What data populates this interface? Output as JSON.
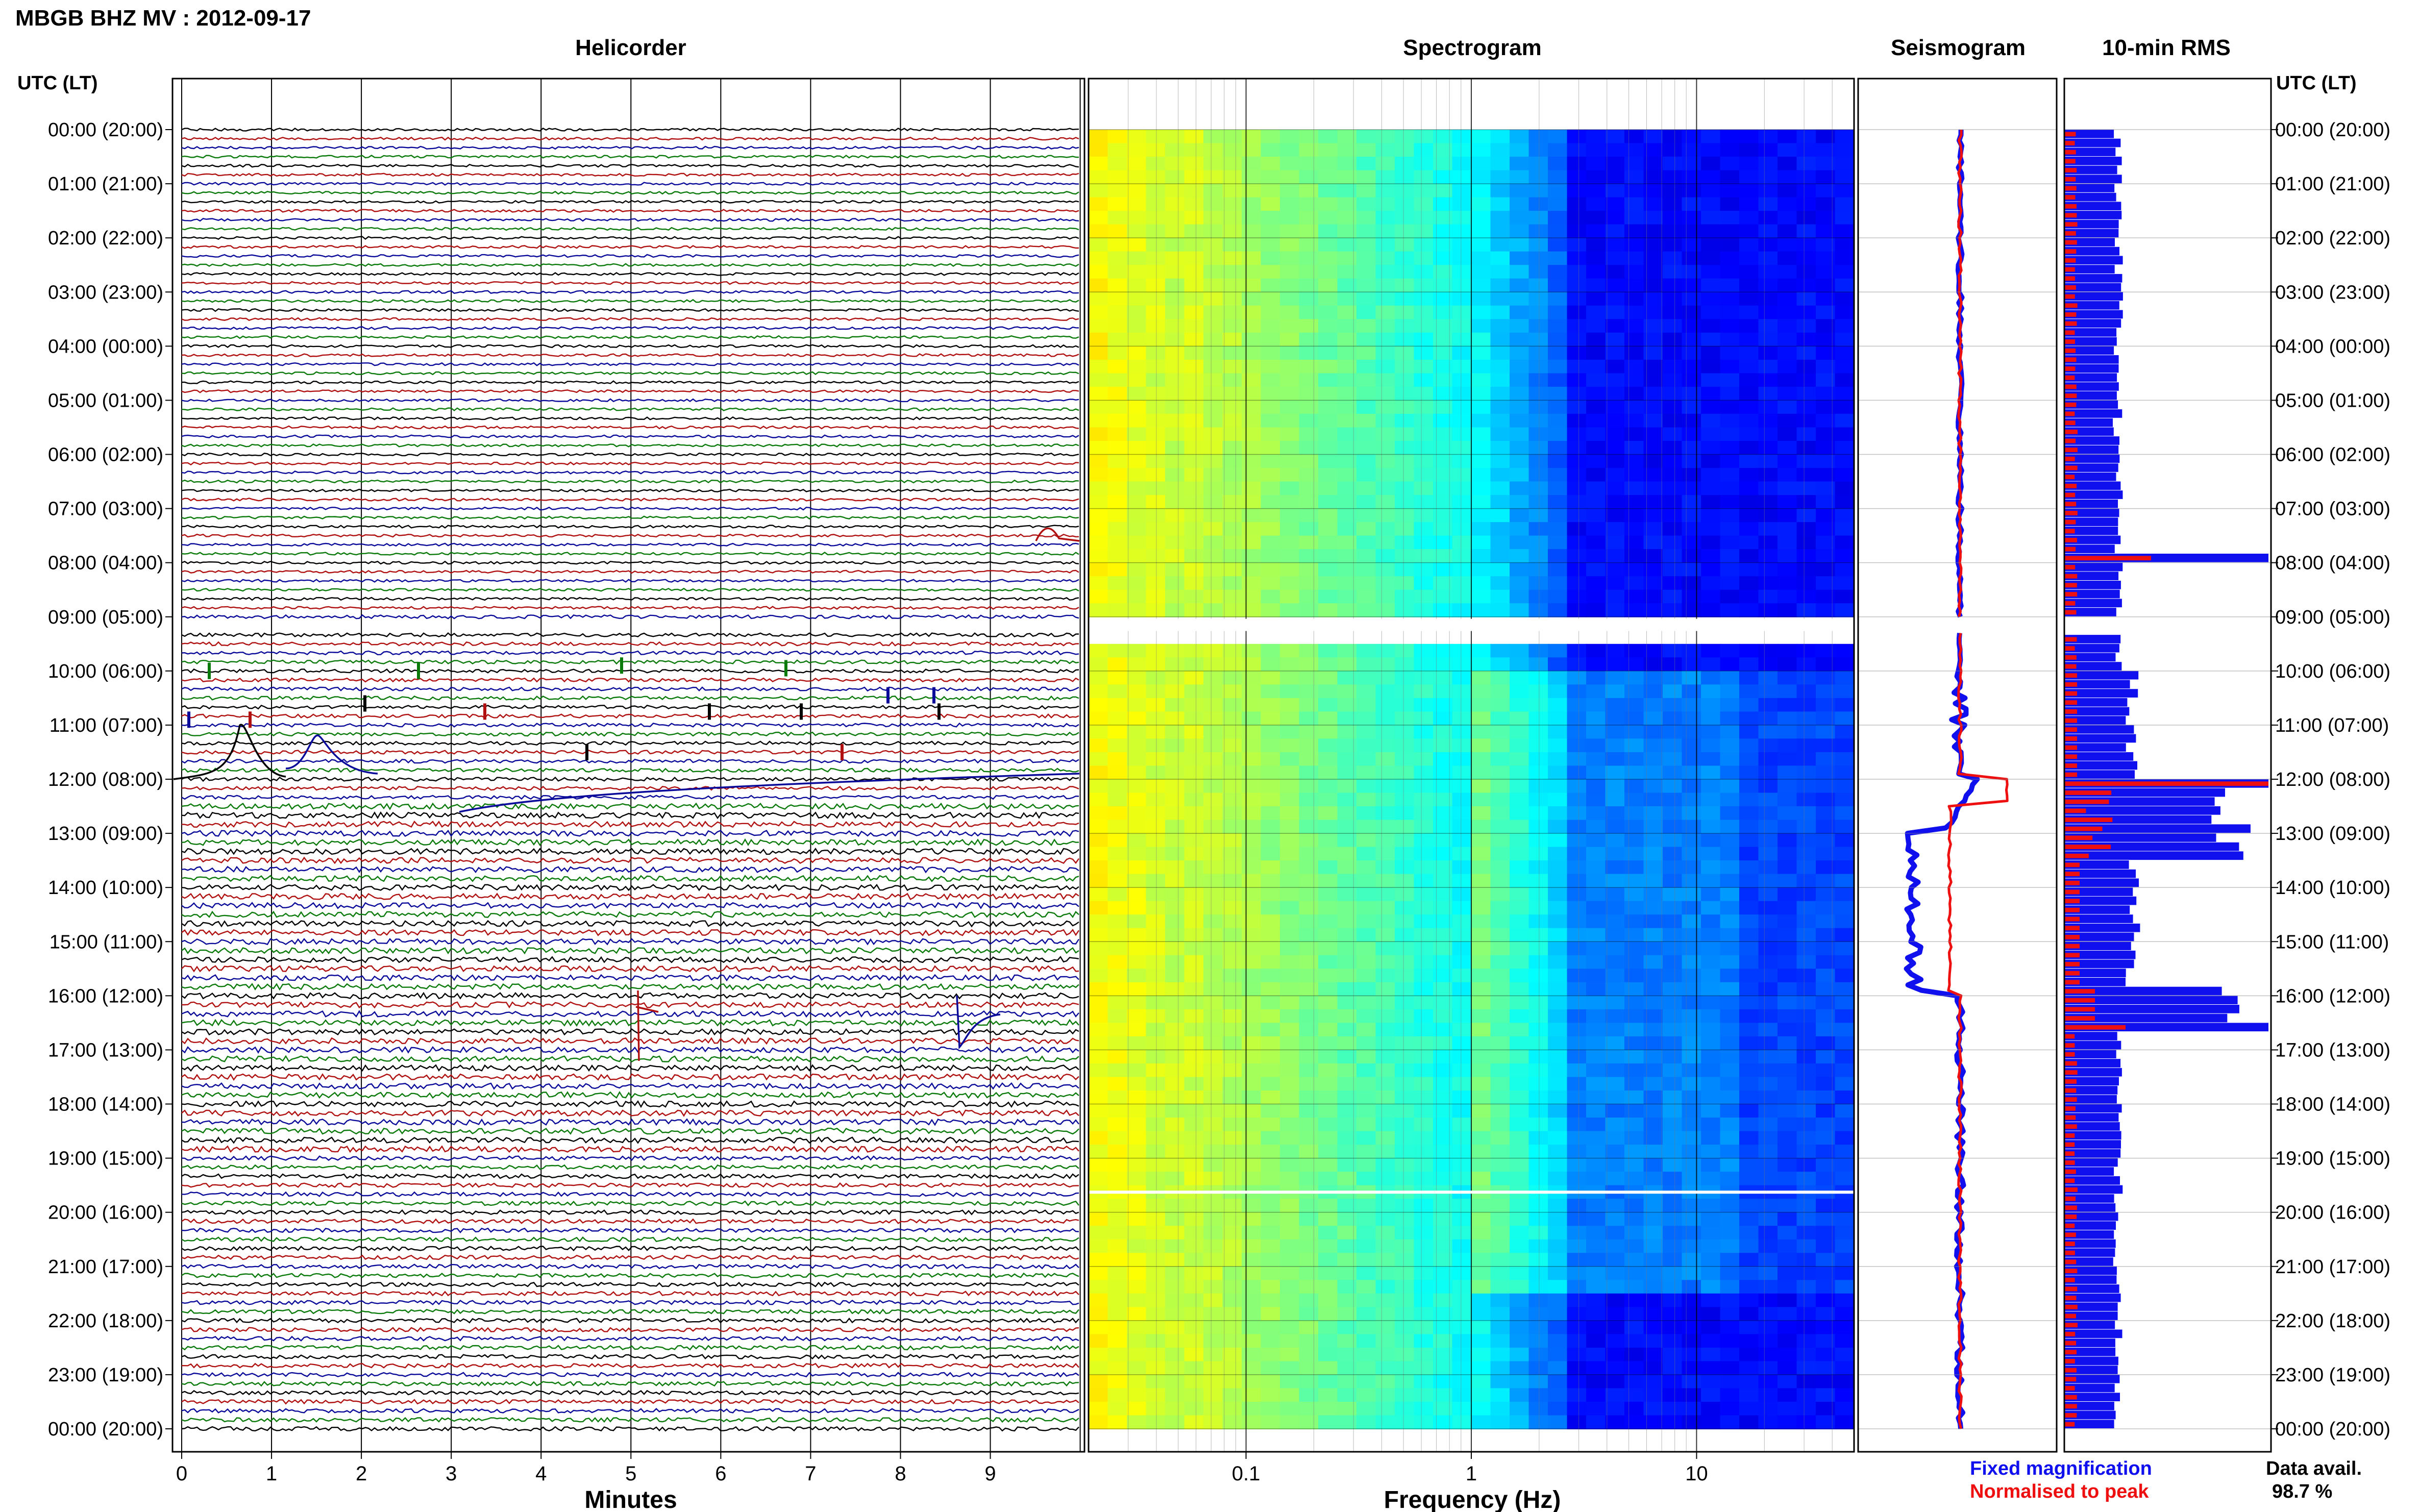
{
  "header": {
    "title": "MBGB BHZ MV : 2012-09-17"
  },
  "panels": {
    "helicorder": "Helicorder",
    "spectrogram": "Spectrogram",
    "seismogram": "Seismogram",
    "rms": "10-min RMS"
  },
  "axes": {
    "left_label": "UTC (LT)",
    "right_label": "UTC (LT)",
    "minutes_label": "Minutes",
    "frequency_label": "Frequency (Hz)"
  },
  "legend": {
    "fixed": "Fixed magnification",
    "normalised": "Normalised to peak",
    "fixed_color": "#1010ee",
    "normalised_color": "#ee1010"
  },
  "data_avail": {
    "label": "Data avail.",
    "value": "98.7 %"
  },
  "colors": {
    "trace_cycle": [
      "#000000",
      "#b01010",
      "#0a0a9a",
      "#0a7a0a"
    ],
    "spectrogram_high": "#00127a",
    "rms_fixed": "#1010ee",
    "rms_normalised": "#ee1010"
  },
  "chart_data": [
    {
      "type": "line",
      "title": "Helicorder",
      "xlabel": "Minutes",
      "ylabel": "UTC (LT)",
      "x_ticks": [
        "0",
        "1",
        "2",
        "3",
        "4",
        "5",
        "6",
        "7",
        "8",
        "9"
      ],
      "xlim": [
        0,
        10
      ],
      "y_ticks": [
        "00:00 (20:00)",
        "01:00 (21:00)",
        "02:00 (22:00)",
        "03:00 (23:00)",
        "04:00 (00:00)",
        "05:00 (01:00)",
        "06:00 (02:00)",
        "07:00 (03:00)",
        "08:00 (04:00)",
        "09:00 (05:00)",
        "10:00 (06:00)",
        "11:00 (07:00)",
        "12:00 (08:00)",
        "13:00 (09:00)",
        "14:00 (10:00)",
        "15:00 (11:00)",
        "16:00 (12:00)",
        "17:00 (13:00)",
        "18:00 (14:00)",
        "19:00 (15:00)",
        "20:00 (16:00)",
        "21:00 (17:00)",
        "22:00 (18:00)",
        "23:00 (19:00)",
        "00:00 (20:00)"
      ],
      "traces_per_hour": 6,
      "data_gap_utc": [
        9.0,
        9.3
      ],
      "grid": true
    },
    {
      "type": "heatmap",
      "title": "Spectrogram",
      "xlabel": "Frequency (Hz)",
      "x_scale": "log",
      "x_ticks": [
        "0.1",
        "1",
        "10"
      ],
      "xlim": [
        0.02,
        50
      ],
      "colormap": "jet"
    },
    {
      "type": "line",
      "title": "Seismogram",
      "series": [
        {
          "name": "Fixed magnification",
          "color": "#1010ee"
        },
        {
          "name": "Normalised to peak",
          "color": "#ee1010"
        }
      ]
    },
    {
      "type": "bar",
      "title": "10-min RMS",
      "orientation": "horizontal",
      "series": [
        {
          "name": "Fixed magnification",
          "color": "#1010ee"
        },
        {
          "name": "Normalised to peak",
          "color": "#ee1010"
        }
      ]
    }
  ]
}
